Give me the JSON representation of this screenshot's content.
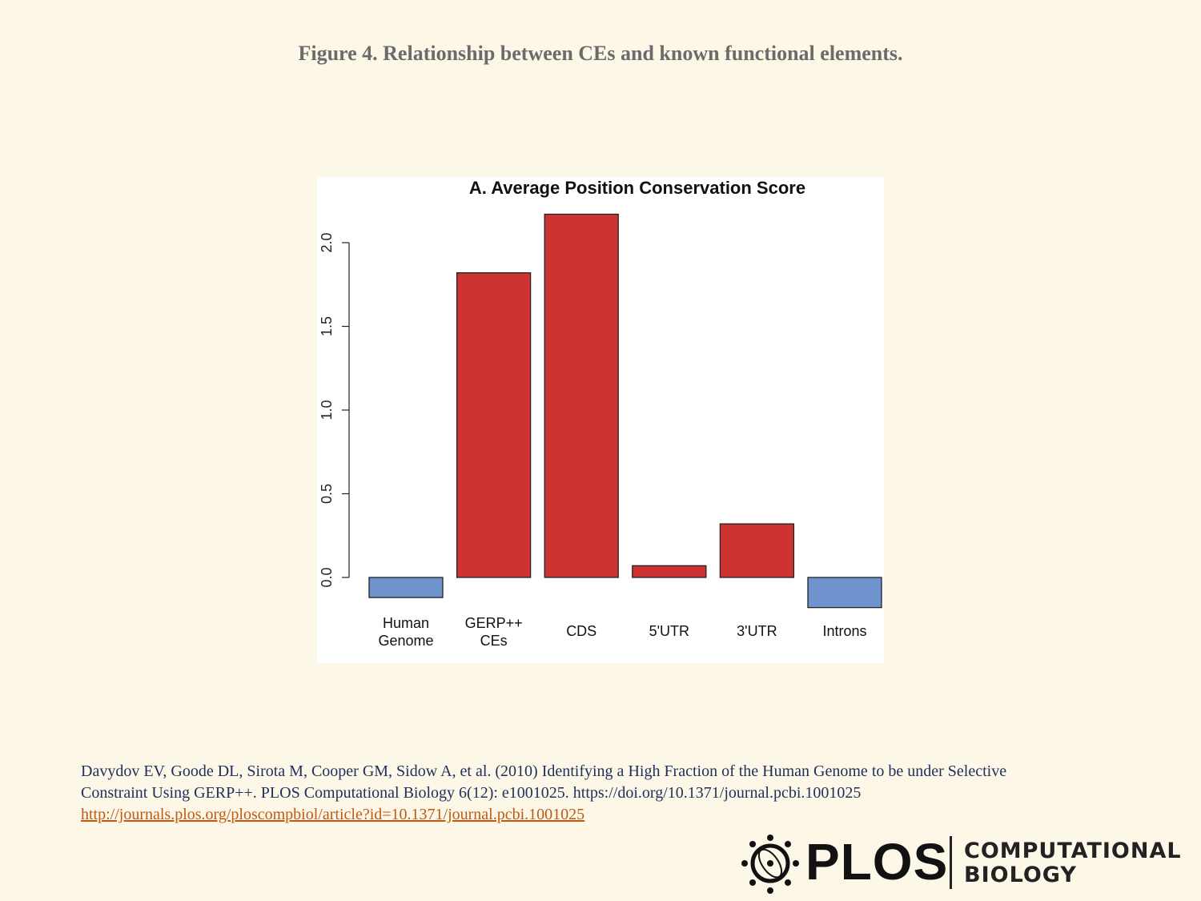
{
  "figure_title": "Figure 4. Relationship between CEs and known functional elements.",
  "citation": {
    "line1": "Davydov EV, Goode DL, Sirota M, Cooper GM, Sidow A, et al. (2010) Identifying a High Fraction of the Human Genome to be under Selective",
    "line2": "Constraint Using GERP++. PLOS Computational Biology 6(12): e1001025. https://doi.org/10.1371/journal.pcbi.1001025",
    "link": "http://journals.plos.org/ploscompbiol/article?id=10.1371/journal.pcbi.1001025"
  },
  "logo": {
    "word": "PLOS",
    "journal_line1": "COMPUTATIONAL",
    "journal_line2": "BIOLOGY"
  },
  "chart_data": {
    "type": "bar",
    "title": "A. Average Position Conservation Score",
    "categories": [
      [
        "Human",
        "Genome"
      ],
      [
        "GERP++",
        "CEs"
      ],
      [
        "CDS"
      ],
      [
        "5'UTR"
      ],
      [
        "3'UTR"
      ],
      [
        "Introns"
      ]
    ],
    "values": [
      -0.12,
      1.82,
      2.17,
      0.07,
      0.32,
      -0.18
    ],
    "colors": [
      "#6f93cd",
      "#cd3333",
      "#cd3333",
      "#cd3333",
      "#cd3333",
      "#6f93cd"
    ],
    "yticks": [
      0.0,
      0.5,
      1.0,
      1.5,
      2.0
    ],
    "ytick_labels": [
      "0.0",
      "0.5",
      "1.0",
      "1.5",
      "2.0"
    ],
    "ylim": [
      -0.2,
      2.2
    ],
    "xlabel": "",
    "ylabel": "",
    "grid": false
  }
}
